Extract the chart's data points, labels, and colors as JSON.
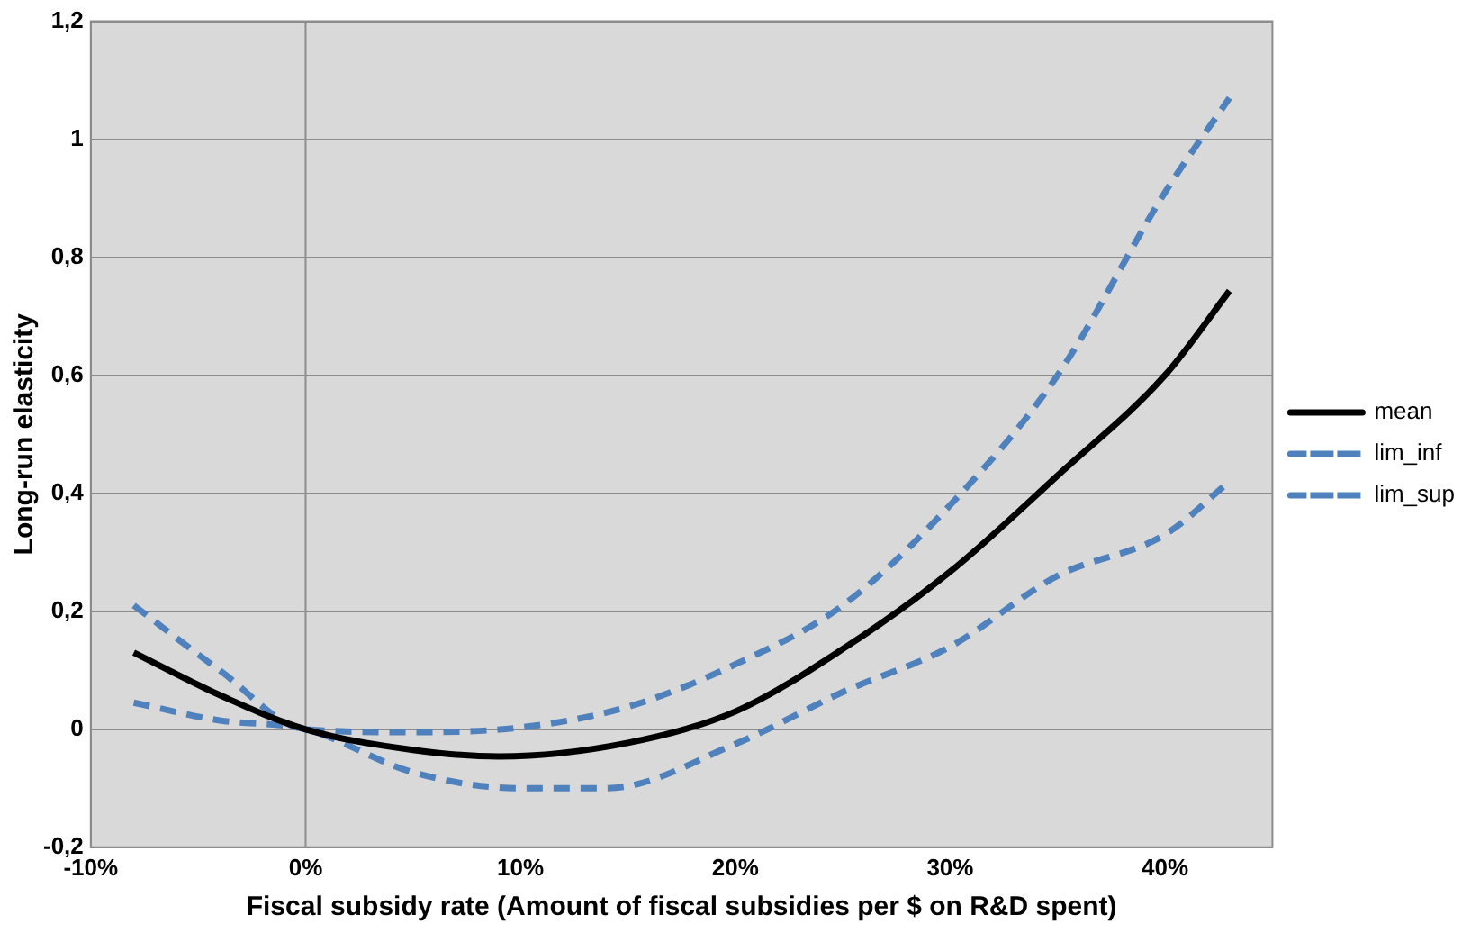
{
  "chart_data": {
    "type": "line",
    "xlabel": "Fiscal subsidy rate (Amount of fiscal subsidies per $ on R&D spent)",
    "ylabel": "Long-run elasticity",
    "xlim": [
      -10,
      45
    ],
    "xticks": [
      {
        "value": -10,
        "label": "-10%"
      },
      {
        "value": 0,
        "label": "0%"
      },
      {
        "value": 10,
        "label": "10%"
      },
      {
        "value": 20,
        "label": "20%"
      },
      {
        "value": 30,
        "label": "30%"
      },
      {
        "value": 40,
        "label": "40%"
      }
    ],
    "ylim": [
      -0.2,
      1.2
    ],
    "yticks": [
      {
        "value": -0.2,
        "label": "-0,2"
      },
      {
        "value": 0,
        "label": "0"
      },
      {
        "value": 0.2,
        "label": "0,2"
      },
      {
        "value": 0.4,
        "label": "0,4"
      },
      {
        "value": 0.6,
        "label": "0,6"
      },
      {
        "value": 0.8,
        "label": "0,8"
      },
      {
        "value": 1,
        "label": "1"
      },
      {
        "value": 1.2,
        "label": "1,2"
      }
    ],
    "grid": "y",
    "legend": "right",
    "marker": "none",
    "ref_lines": [
      {
        "axis": "x",
        "value": 0,
        "color": "#8c8c8c"
      }
    ],
    "series": [
      {
        "name": "mean",
        "color": "#000000",
        "line_style": "solid",
        "x": [
          -8,
          -4,
          0,
          5,
          9,
          15,
          20,
          25,
          30,
          35,
          40,
          43
        ],
        "values": [
          0.13,
          0.058,
          0,
          -0.035,
          -0.046,
          -0.023,
          0.03,
          0.136,
          0.267,
          0.43,
          0.6,
          0.743
        ]
      },
      {
        "name": "lim_inf",
        "color": "#4f81bd",
        "line_style": "dashed",
        "x": [
          -8,
          -4,
          0,
          5,
          10,
          14,
          20,
          25,
          30,
          35,
          40,
          43
        ],
        "values": [
          0.045,
          0.015,
          0,
          -0.073,
          -0.1,
          -0.1,
          -0.025,
          0.063,
          0.14,
          0.26,
          0.33,
          0.42
        ]
      },
      {
        "name": "lim_sup",
        "color": "#4f81bd",
        "line_style": "dashed",
        "x": [
          -8,
          -4,
          0,
          5,
          10,
          15,
          20,
          25,
          30,
          35,
          40,
          43
        ],
        "values": [
          0.21,
          0.1,
          0,
          -0.005,
          0.003,
          0.038,
          0.11,
          0.21,
          0.38,
          0.6,
          0.91,
          1.07
        ]
      }
    ]
  }
}
